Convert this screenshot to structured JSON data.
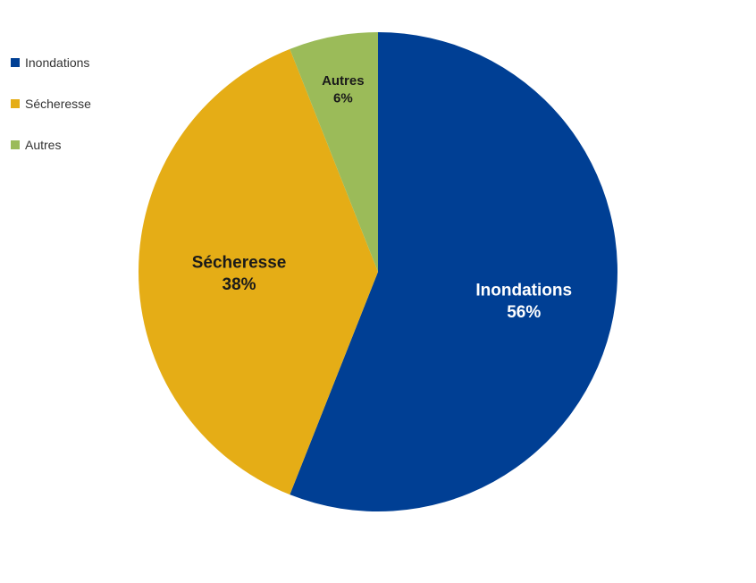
{
  "chart_data": {
    "type": "pie",
    "title": "",
    "categories": [
      "Inondations",
      "Sécheresse",
      "Autres"
    ],
    "values": [
      56,
      38,
      6
    ],
    "unit": "%",
    "colors": [
      "#003f94",
      "#e5ad16",
      "#9bbb59"
    ],
    "slice_labels": [
      {
        "name": "Inondations",
        "pct": "56%",
        "text_color": "#ffffff"
      },
      {
        "name": "Sécheresse",
        "pct": "38%",
        "text_color": "#1a1a1a"
      },
      {
        "name": "Autres",
        "pct": "6%",
        "text_color": "#1a1a1a"
      }
    ],
    "legend": {
      "placement": "top-left",
      "entries": [
        "Inondations",
        "Sécheresse",
        "Autres"
      ]
    },
    "start_angle": "12 o'clock",
    "direction": "clockwise"
  }
}
